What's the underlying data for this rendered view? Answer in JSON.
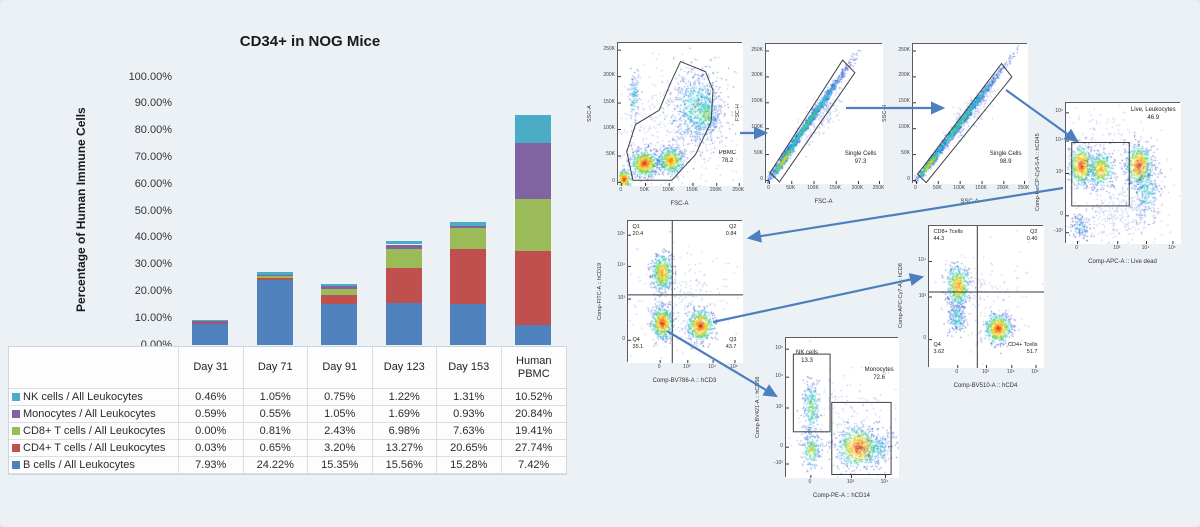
{
  "page": {
    "background": "#ecf1f6",
    "arrow_color": "#4d7fbe"
  },
  "chart": {
    "title": "CD34+ in NOG Mice",
    "y_axis_label": "Percentage of Human Immune Cells",
    "y_ticks": [
      "100.00%",
      "90.00%",
      "80.00%",
      "70.00%",
      "60.00%",
      "50.00%",
      "40.00%",
      "30.00%",
      "20.00%",
      "10.00%",
      "0.00%"
    ]
  },
  "chart_data": {
    "type": "bar",
    "stacked": true,
    "title": "CD34+ in NOG Mice",
    "ylabel": "Percentage of Human Immune Cells",
    "ylim": [
      0,
      100
    ],
    "grid": false,
    "legend_position": "table-left",
    "categories": [
      "Day 31",
      "Day 71",
      "Day 91",
      "Day 123",
      "Day 153",
      "Human PBMC"
    ],
    "stack_order_bottom_to_top": [
      "B cells",
      "CD4+ T cells",
      "CD8+ T cells",
      "Monocytes",
      "NK cells"
    ],
    "series": [
      {
        "name": "NK cells / All Leukocytes",
        "color": "#4BACC6",
        "values": [
          0.46,
          1.05,
          0.75,
          1.22,
          1.31,
          10.52
        ],
        "display": [
          "0.46%",
          "1.05%",
          "0.75%",
          "1.22%",
          "1.31%",
          "10.52%"
        ]
      },
      {
        "name": "Monocytes / All Leukocytes",
        "color": "#8064A2",
        "values": [
          0.59,
          0.55,
          1.05,
          1.69,
          0.93,
          20.84
        ],
        "display": [
          "0.59%",
          "0.55%",
          "1.05%",
          "1.69%",
          "0.93%",
          "20.84%"
        ]
      },
      {
        "name": "CD8+ T cells / All Leukocytes",
        "color": "#9BBB59",
        "values": [
          0.0,
          0.81,
          2.43,
          6.98,
          7.63,
          19.41
        ],
        "display": [
          "0.00%",
          "0.81%",
          "2.43%",
          "6.98%",
          "7.63%",
          "19.41%"
        ]
      },
      {
        "name": "CD4+ T cells / All Leukocytes",
        "color": "#C0504D",
        "values": [
          0.03,
          0.65,
          3.2,
          13.27,
          20.65,
          27.74
        ],
        "display": [
          "0.03%",
          "0.65%",
          "3.20%",
          "13.27%",
          "20.65%",
          "27.74%"
        ]
      },
      {
        "name": "B cells / All Leukocytes",
        "color": "#4F81BD",
        "values": [
          7.93,
          24.22,
          15.35,
          15.56,
          15.28,
          7.42
        ],
        "display": [
          "7.93%",
          "24.22%",
          "15.35%",
          "15.56%",
          "15.28%",
          "7.42%"
        ]
      }
    ]
  },
  "flow_plots": [
    {
      "id": "fsc-ssc",
      "xlabel": "FSC-A",
      "ylabel": "SSC-A",
      "x_ticks": [
        "0",
        "50K",
        "100K",
        "150K",
        "200K",
        "250K"
      ],
      "y_ticks": [
        "250K",
        "200K",
        "150K",
        "100K",
        "50K",
        "0"
      ],
      "gates": [
        {
          "label": "PBMC",
          "value": "78.2"
        }
      ]
    },
    {
      "id": "singlets-fsc",
      "xlabel": "FSC-A",
      "ylabel": "FSC-H",
      "x_ticks": [
        "0",
        "50K",
        "100K",
        "150K",
        "200K",
        "250K"
      ],
      "y_ticks": [
        "250K",
        "200K",
        "150K",
        "100K",
        "50K",
        "0"
      ],
      "gates": [
        {
          "label": "Single Cells",
          "value": "97.3"
        }
      ]
    },
    {
      "id": "singlets-ssc",
      "xlabel": "SSC-A",
      "ylabel": "SSC-H",
      "x_ticks": [
        "0",
        "50K",
        "100K",
        "150K",
        "200K",
        "250K"
      ],
      "y_ticks": [
        "250K",
        "200K",
        "150K",
        "100K",
        "50K",
        "0"
      ],
      "gates": [
        {
          "label": "Single Cells",
          "value": "98.9"
        }
      ]
    },
    {
      "id": "live-leukocytes",
      "xlabel": "Comp-APC-A :: Live dead",
      "ylabel": "Comp-PerCP-Cy5-5-A :: hCD45",
      "x_ticks": [
        "0",
        "10³",
        "10⁴",
        "10⁵"
      ],
      "y_ticks": [
        "10⁵",
        "10⁴",
        "10³",
        "0",
        "-10³"
      ],
      "gates": [
        {
          "label": "Live, Leukocytes",
          "value": "46.9"
        }
      ]
    },
    {
      "id": "cd3-cd19",
      "xlabel": "Comp-BV786-A :: hCD3",
      "ylabel": "Comp-FITC-A :: hCD19",
      "x_ticks": [
        "0",
        "10³",
        "10⁴",
        "10⁵"
      ],
      "y_ticks": [
        "10⁵",
        "10⁴",
        "10³",
        "0"
      ],
      "quadrants": [
        {
          "label": "Q1",
          "value": "20.4",
          "pos": "tl"
        },
        {
          "label": "Q2",
          "value": "0.84",
          "pos": "tr"
        },
        {
          "label": "Q4",
          "value": "35.1",
          "pos": "bl"
        },
        {
          "label": "Q3",
          "value": "43.7",
          "pos": "br"
        }
      ]
    },
    {
      "id": "cd4-cd8",
      "xlabel": "Comp-BV510-A :: hCD4",
      "ylabel": "Comp-APC-Cy7-A :: hCD8",
      "x_ticks": [
        "0",
        "10³",
        "10⁴",
        "10⁵"
      ],
      "y_ticks": [
        "10⁴",
        "10³",
        "0"
      ],
      "quadrants": [
        {
          "label": "CD8+ Tcells",
          "value": "44.3",
          "pos": "tl"
        },
        {
          "label": "Q2",
          "value": "0.40",
          "pos": "tr"
        },
        {
          "label": "Q4",
          "value": "3.62",
          "pos": "bl"
        },
        {
          "label": "CD4+ Tcells",
          "value": "51.7",
          "pos": "br"
        }
      ]
    },
    {
      "id": "cd14-cd56",
      "xlabel": "Comp-PE-A :: hCD14",
      "ylabel": "Comp-BV421-A :: hCD56",
      "x_ticks": [
        "0",
        "10³",
        "10⁴"
      ],
      "y_ticks": [
        "10⁵",
        "10⁴",
        "10³",
        "0",
        "-10³"
      ],
      "gates": [
        {
          "label": "NK cells",
          "value": "13.3"
        },
        {
          "label": "Monocytes",
          "value": "72.6"
        }
      ]
    }
  ]
}
